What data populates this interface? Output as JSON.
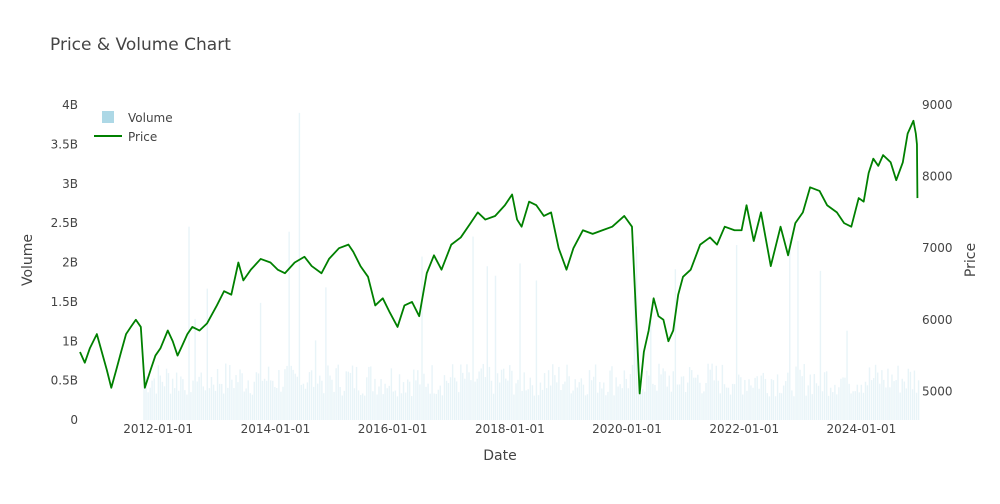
{
  "chart_data": {
    "type": "line",
    "title": "Price & Volume Chart",
    "xlabel": "Date",
    "ylabel": "Volume",
    "y2label": "Price",
    "x_range": [
      "2010-09-01",
      "2024-12-31"
    ],
    "x_ticks": [
      "2012-01-01",
      "2014-01-01",
      "2016-01-01",
      "2018-01-01",
      "2020-01-01",
      "2022-01-01",
      "2024-01-01"
    ],
    "ylim": [
      0,
      4000000000
    ],
    "y_ticks": [
      {
        "value": 0,
        "label": "0"
      },
      {
        "value": 500000000,
        "label": "0.5B"
      },
      {
        "value": 1000000000,
        "label": "1B"
      },
      {
        "value": 1500000000,
        "label": "1.5B"
      },
      {
        "value": 2000000000,
        "label": "2B"
      },
      {
        "value": 2500000000,
        "label": "2.5B"
      },
      {
        "value": 3000000000,
        "label": "3B"
      },
      {
        "value": 3500000000,
        "label": "3.5B"
      },
      {
        "value": 4000000000,
        "label": "4B"
      }
    ],
    "y2lim": [
      4600,
      9000
    ],
    "y2_ticks": [
      {
        "value": 5000,
        "label": "5000"
      },
      {
        "value": 6000,
        "label": "6000"
      },
      {
        "value": 7000,
        "label": "7000"
      },
      {
        "value": 8000,
        "label": "8000"
      },
      {
        "value": 9000,
        "label": "9000"
      }
    ],
    "legend_position": "top-left",
    "series": [
      {
        "name": "Volume",
        "kind": "bar",
        "axis": "y",
        "color": "#add8e6",
        "x_start": "2011-10-01",
        "x_end": "2024-12-31",
        "typical_value": 500000000,
        "max_value": 3900000000
      },
      {
        "name": "Price",
        "kind": "line",
        "axis": "y2",
        "color": "#008000",
        "points": [
          [
            "2010-09-01",
            5550
          ],
          [
            "2010-10-01",
            5400
          ],
          [
            "2010-11-01",
            5600
          ],
          [
            "2010-12-15",
            5800
          ],
          [
            "2011-01-15",
            5550
          ],
          [
            "2011-02-15",
            5300
          ],
          [
            "2011-03-15",
            5050
          ],
          [
            "2011-04-15",
            5300
          ],
          [
            "2011-05-15",
            5550
          ],
          [
            "2011-06-15",
            5800
          ],
          [
            "2011-07-15",
            5900
          ],
          [
            "2011-08-15",
            6000
          ],
          [
            "2011-09-15",
            5900
          ],
          [
            "2011-10-10",
            5050
          ],
          [
            "2011-11-15",
            5300
          ],
          [
            "2011-12-15",
            5500
          ],
          [
            "2012-01-15",
            5600
          ],
          [
            "2012-03-01",
            5850
          ],
          [
            "2012-04-01",
            5700
          ],
          [
            "2012-05-01",
            5500
          ],
          [
            "2012-06-01",
            5650
          ],
          [
            "2012-07-01",
            5800
          ],
          [
            "2012-08-01",
            5900
          ],
          [
            "2012-09-15",
            5850
          ],
          [
            "2012-11-01",
            5950
          ],
          [
            "2013-01-01",
            6200
          ],
          [
            "2013-02-15",
            6400
          ],
          [
            "2013-04-01",
            6350
          ],
          [
            "2013-05-15",
            6800
          ],
          [
            "2013-06-15",
            6550
          ],
          [
            "2013-08-01",
            6700
          ],
          [
            "2013-10-01",
            6850
          ],
          [
            "2013-12-01",
            6800
          ],
          [
            "2014-01-15",
            6700
          ],
          [
            "2014-03-01",
            6650
          ],
          [
            "2014-05-01",
            6800
          ],
          [
            "2014-07-01",
            6880
          ],
          [
            "2014-08-15",
            6750
          ],
          [
            "2014-10-15",
            6650
          ],
          [
            "2014-12-01",
            6850
          ],
          [
            "2015-02-01",
            7000
          ],
          [
            "2015-04-01",
            7050
          ],
          [
            "2015-05-01",
            6950
          ],
          [
            "2015-06-15",
            6750
          ],
          [
            "2015-08-01",
            6600
          ],
          [
            "2015-09-15",
            6200
          ],
          [
            "2015-11-01",
            6300
          ],
          [
            "2015-12-15",
            6100
          ],
          [
            "2016-02-01",
            5900
          ],
          [
            "2016-03-15",
            6200
          ],
          [
            "2016-05-01",
            6250
          ],
          [
            "2016-06-15",
            6050
          ],
          [
            "2016-08-01",
            6650
          ],
          [
            "2016-09-15",
            6900
          ],
          [
            "2016-11-01",
            6700
          ],
          [
            "2017-01-01",
            7050
          ],
          [
            "2017-03-01",
            7150
          ],
          [
            "2017-05-01",
            7350
          ],
          [
            "2017-06-15",
            7500
          ],
          [
            "2017-08-01",
            7400
          ],
          [
            "2017-10-01",
            7450
          ],
          [
            "2017-12-01",
            7600
          ],
          [
            "2018-01-15",
            7750
          ],
          [
            "2018-02-15",
            7400
          ],
          [
            "2018-03-15",
            7300
          ],
          [
            "2018-05-01",
            7650
          ],
          [
            "2018-06-15",
            7600
          ],
          [
            "2018-08-01",
            7450
          ],
          [
            "2018-09-15",
            7500
          ],
          [
            "2018-11-01",
            7000
          ],
          [
            "2018-12-20",
            6700
          ],
          [
            "2019-02-01",
            7000
          ],
          [
            "2019-04-01",
            7250
          ],
          [
            "2019-06-01",
            7200
          ],
          [
            "2019-08-01",
            7250
          ],
          [
            "2019-10-01",
            7300
          ],
          [
            "2019-12-15",
            7450
          ],
          [
            "2020-02-01",
            7300
          ],
          [
            "2020-03-20",
            4970
          ],
          [
            "2020-04-15",
            5550
          ],
          [
            "2020-05-15",
            5850
          ],
          [
            "2020-06-15",
            6300
          ],
          [
            "2020-07-15",
            6050
          ],
          [
            "2020-08-15",
            6000
          ],
          [
            "2020-09-15",
            5700
          ],
          [
            "2020-10-15",
            5850
          ],
          [
            "2020-11-15",
            6350
          ],
          [
            "2020-12-15",
            6600
          ],
          [
            "2021-02-01",
            6700
          ],
          [
            "2021-04-01",
            7050
          ],
          [
            "2021-06-01",
            7150
          ],
          [
            "2021-07-15",
            7050
          ],
          [
            "2021-09-01",
            7300
          ],
          [
            "2021-11-01",
            7250
          ],
          [
            "2021-12-15",
            7250
          ],
          [
            "2022-01-15",
            7600
          ],
          [
            "2022-03-01",
            7100
          ],
          [
            "2022-04-15",
            7500
          ],
          [
            "2022-06-15",
            6750
          ],
          [
            "2022-08-15",
            7300
          ],
          [
            "2022-10-01",
            6900
          ],
          [
            "2022-11-15",
            7350
          ],
          [
            "2023-01-01",
            7500
          ],
          [
            "2023-02-15",
            7850
          ],
          [
            "2023-04-15",
            7800
          ],
          [
            "2023-06-01",
            7600
          ],
          [
            "2023-08-01",
            7500
          ],
          [
            "2023-09-15",
            7350
          ],
          [
            "2023-10-30",
            7300
          ],
          [
            "2023-12-15",
            7700
          ],
          [
            "2024-01-15",
            7650
          ],
          [
            "2024-02-15",
            8050
          ],
          [
            "2024-03-15",
            8250
          ],
          [
            "2024-04-15",
            8150
          ],
          [
            "2024-05-15",
            8300
          ],
          [
            "2024-07-01",
            8200
          ],
          [
            "2024-08-05",
            7950
          ],
          [
            "2024-09-15",
            8200
          ],
          [
            "2024-10-15",
            8600
          ],
          [
            "2024-11-20",
            8780
          ],
          [
            "2024-12-05",
            8600
          ],
          [
            "2024-12-12",
            8450
          ],
          [
            "2024-12-15",
            7700
          ]
        ]
      }
    ]
  }
}
